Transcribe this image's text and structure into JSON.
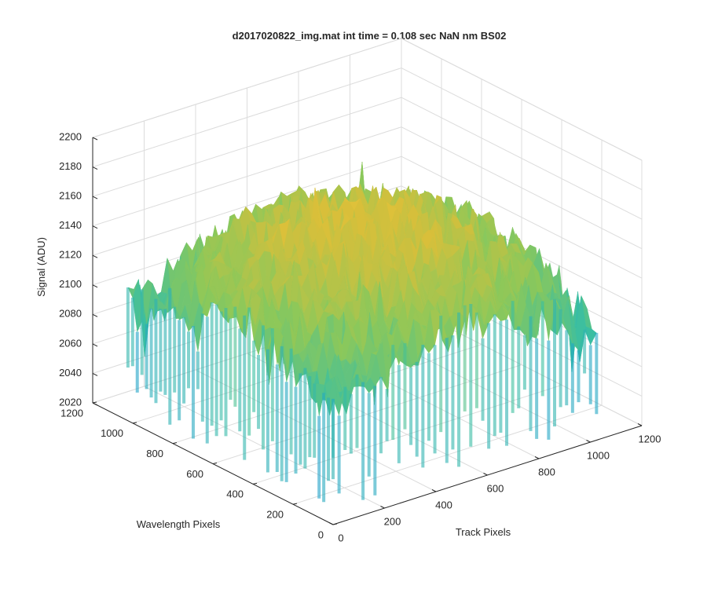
{
  "chart_data": {
    "type": "surface",
    "title": "d2017020822_img.mat int time = 0.108 sec  NaN nm BS02",
    "xlabel": "Track Pixels",
    "ylabel": "Wavelength Pixels",
    "zlabel": "Signal (ADU)",
    "xlim": [
      0,
      1200
    ],
    "ylim": [
      0,
      1200
    ],
    "zlim": [
      2020,
      2200
    ],
    "xticks": [
      "0",
      "200",
      "400",
      "600",
      "800",
      "1000",
      "1200"
    ],
    "yticks": [
      "0",
      "200",
      "400",
      "600",
      "800",
      "1000",
      "1200"
    ],
    "zticks": [
      "2020",
      "2040",
      "2060",
      "2080",
      "2100",
      "2120",
      "2140",
      "2160",
      "2180",
      "2200"
    ],
    "data_extent": {
      "x": [
        0,
        1024
      ],
      "y": [
        0,
        1024
      ]
    },
    "surface_profile": {
      "center_mean": 2155,
      "edge_mean": 2100,
      "corner_mean": 2085,
      "noise_min": 2030,
      "noise_max": 2185
    },
    "grid": true,
    "colormap": [
      "#0072bd",
      "#1fa3c8",
      "#3bbfa0",
      "#8cc85a",
      "#d8bf3a",
      "#f3c93a"
    ]
  }
}
